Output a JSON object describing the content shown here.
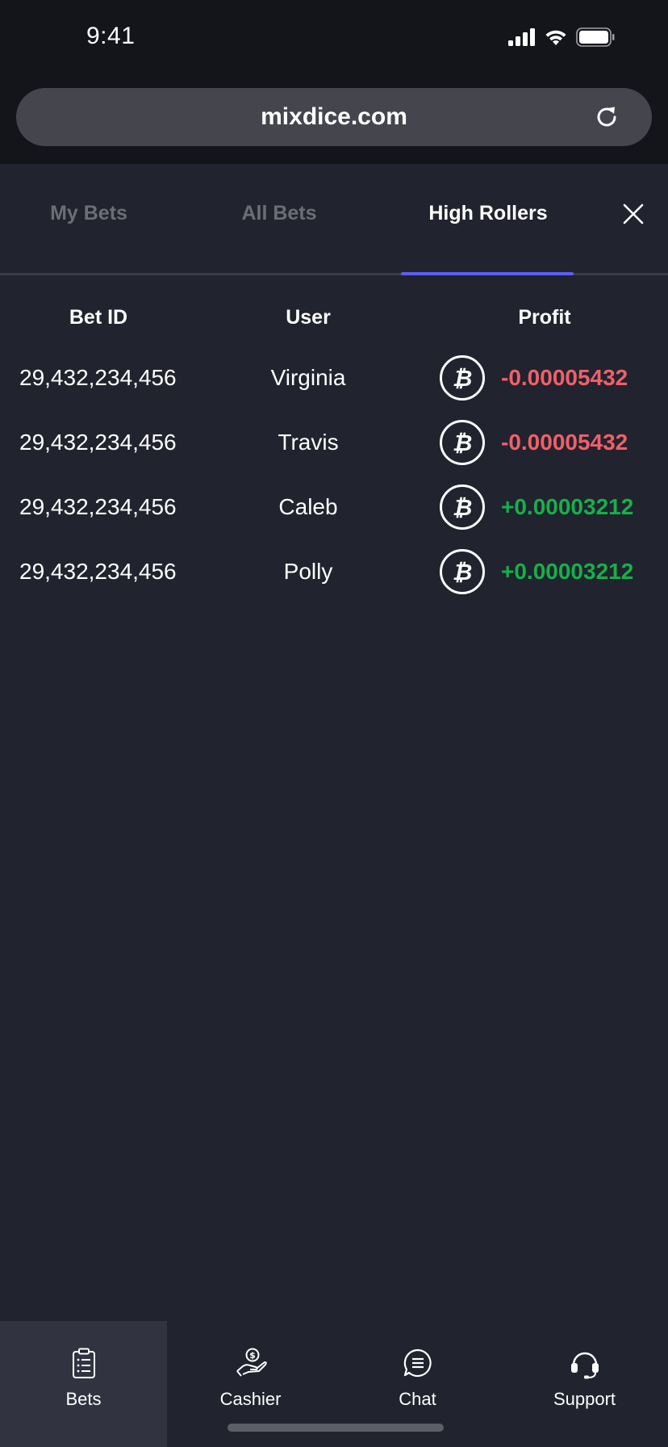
{
  "status_bar": {
    "time": "9:41",
    "icons": [
      "signal-icon",
      "wifi-icon",
      "battery-icon"
    ]
  },
  "browser": {
    "url": "mixdice.com",
    "reload_icon": "reload-icon"
  },
  "tabs": [
    {
      "label": "My Bets",
      "active": false
    },
    {
      "label": "All Bets",
      "active": false
    },
    {
      "label": "High Rollers",
      "active": true
    }
  ],
  "close_icon": "close-icon",
  "table": {
    "headers": {
      "bet_id": "Bet ID",
      "user": "User",
      "profit": "Profit"
    },
    "rows": [
      {
        "bet_id": "29,432,234,456",
        "user": "Virginia",
        "currency_icon": "bitcoin-icon",
        "profit": "-0.00005432",
        "status": "negative"
      },
      {
        "bet_id": "29,432,234,456",
        "user": "Travis",
        "currency_icon": "bitcoin-icon",
        "profit": "-0.00005432",
        "status": "negative"
      },
      {
        "bet_id": "29,432,234,456",
        "user": "Caleb",
        "currency_icon": "bitcoin-icon",
        "profit": "+0.00003212",
        "status": "positive"
      },
      {
        "bet_id": "29,432,234,456",
        "user": "Polly",
        "currency_icon": "bitcoin-icon",
        "profit": "+0.00003212",
        "status": "positive"
      }
    ]
  },
  "bottom_nav": [
    {
      "label": "Bets",
      "icon": "clipboard-icon",
      "active": true
    },
    {
      "label": "Cashier",
      "icon": "cashier-icon",
      "active": false
    },
    {
      "label": "Chat",
      "icon": "chat-icon",
      "active": false
    },
    {
      "label": "Support",
      "icon": "headset-icon",
      "active": false
    }
  ],
  "colors": {
    "background": "#21232e",
    "chrome": "#14151b",
    "accent": "#5b5ff2",
    "negative": "#f0606a",
    "positive": "#16b04a",
    "inactive_tab": "#6d6e75"
  }
}
